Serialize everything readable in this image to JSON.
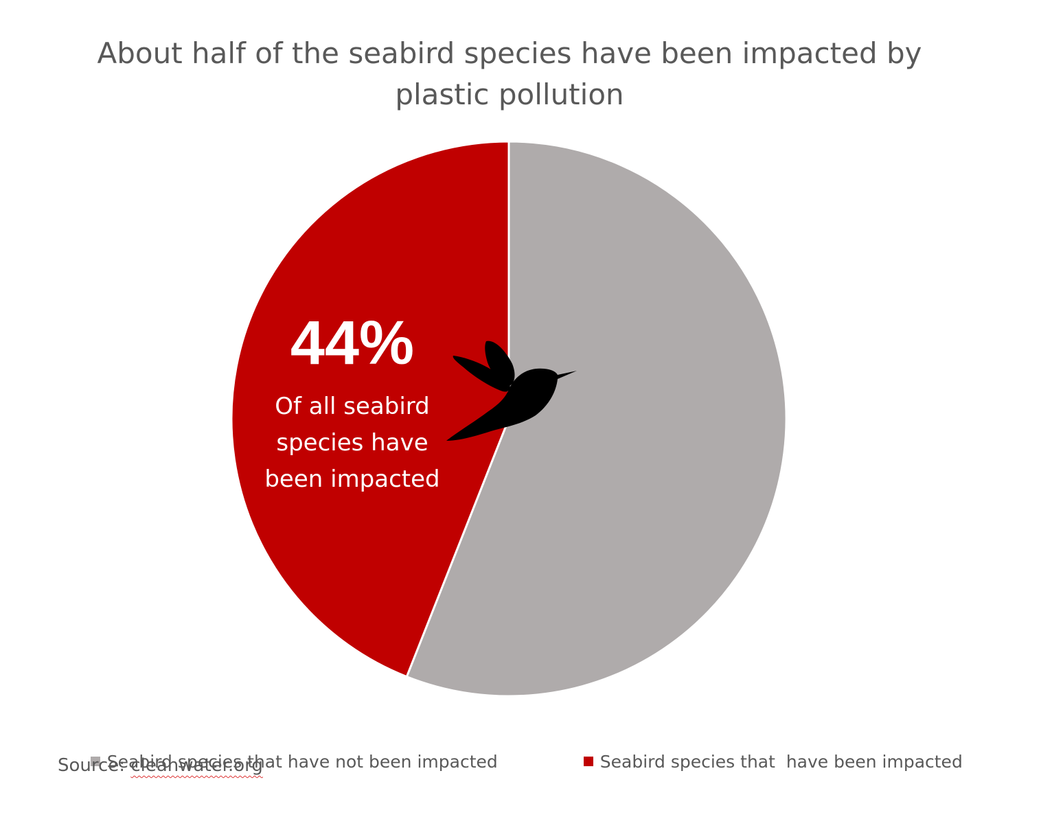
{
  "chart_data": {
    "type": "pie",
    "title": "About half of the seabird species have been impacted by plastic pollution",
    "title_lines": [
      "About half of the seabird species have been impacted by",
      "plastic pollution"
    ],
    "slices": [
      {
        "label": "Seabird species that have not been impacted",
        "value": 56,
        "color": "#afabab"
      },
      {
        "label": "Seabird species that  have been impacted",
        "value": 44,
        "color": "#c00000"
      }
    ],
    "start_angle_deg": 0,
    "direction": "clockwise",
    "callout": {
      "value": "44%",
      "text_lines": [
        "Of all seabird",
        "species have",
        "been impacted"
      ],
      "color": "#ffffff"
    },
    "icon": "hummingbird-icon",
    "legend_placement": "bottom"
  },
  "source": {
    "prefix": "Source: ",
    "link": "cleanwater.org"
  }
}
